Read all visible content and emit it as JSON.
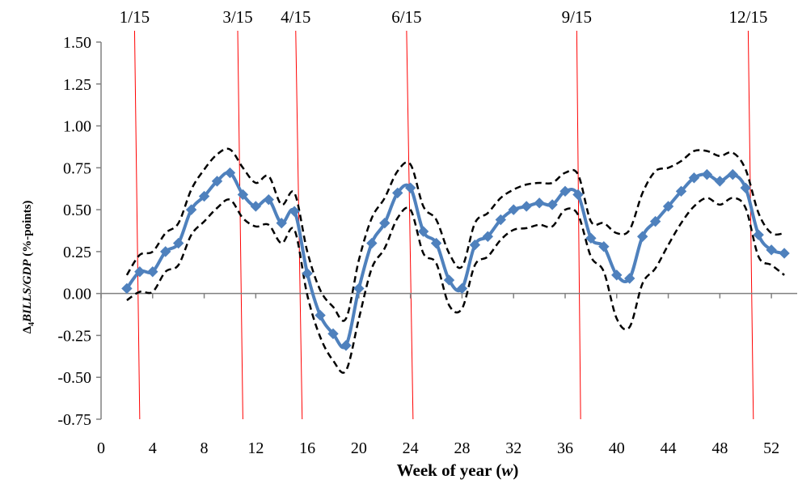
{
  "chart_data": {
    "type": "line",
    "title": "",
    "xlabel": {
      "prefix": "Week of year (",
      "var": "w",
      "suffix": ")"
    },
    "ylabel": {
      "delta": "Δ",
      "sub": "4",
      "var": "BILLS/GDP",
      "suffix": " (%-points)"
    },
    "xlim": [
      0,
      54
    ],
    "ylim": [
      -0.75,
      1.5
    ],
    "xticks": [
      0,
      4,
      8,
      12,
      16,
      20,
      24,
      28,
      32,
      36,
      40,
      44,
      48,
      52
    ],
    "yticks": [
      "-0.75",
      "-0.50",
      "-0.25",
      "0.00",
      "0.25",
      "0.50",
      "0.75",
      "1.00",
      "1.25",
      "1.50"
    ],
    "date_markers": [
      {
        "label": "1/15",
        "x_top": 2.6,
        "x_bottom": 3.0
      },
      {
        "label": "3/15",
        "x_top": 10.6,
        "x_bottom": 11.0
      },
      {
        "label": "4/15",
        "x_top": 15.1,
        "x_bottom": 15.6
      },
      {
        "label": "6/15",
        "x_top": 23.7,
        "x_bottom": 24.2
      },
      {
        "label": "9/15",
        "x_top": 36.9,
        "x_bottom": 37.2
      },
      {
        "label": "12/15",
        "x_top": 50.2,
        "x_bottom": 50.6
      }
    ],
    "x": [
      2,
      3,
      4,
      5,
      6,
      7,
      8,
      9,
      10,
      11,
      12,
      13,
      14,
      15,
      16,
      17,
      18,
      19,
      20,
      21,
      22,
      23,
      24,
      25,
      26,
      27,
      28,
      29,
      30,
      31,
      32,
      33,
      34,
      35,
      36,
      37,
      38,
      39,
      40,
      41,
      42,
      43,
      44,
      45,
      46,
      47,
      48,
      49,
      50,
      51,
      52,
      53
    ],
    "series": [
      {
        "name": "",
        "style": "solid",
        "color": "#4F81BD",
        "markers": true,
        "values": [
          0.03,
          0.13,
          0.13,
          0.25,
          0.3,
          0.5,
          0.58,
          0.67,
          0.72,
          0.59,
          0.52,
          0.56,
          0.42,
          0.49,
          0.12,
          -0.13,
          -0.24,
          -0.31,
          0.03,
          0.3,
          0.42,
          0.6,
          0.63,
          0.37,
          0.3,
          0.08,
          0.03,
          0.29,
          0.34,
          0.44,
          0.5,
          0.52,
          0.54,
          0.53,
          0.61,
          0.59,
          0.33,
          0.28,
          0.11,
          0.09,
          0.34,
          0.43,
          0.52,
          0.61,
          0.69,
          0.71,
          0.67,
          0.71,
          0.63,
          0.35,
          0.26,
          0.24
        ]
      },
      {
        "name": "",
        "style": "dashed",
        "color": "#000000",
        "markers": false,
        "values": [
          0.11,
          0.23,
          0.25,
          0.36,
          0.42,
          0.62,
          0.74,
          0.83,
          0.86,
          0.75,
          0.66,
          0.7,
          0.53,
          0.6,
          0.25,
          0.02,
          -0.08,
          -0.15,
          0.2,
          0.45,
          0.57,
          0.73,
          0.77,
          0.52,
          0.44,
          0.24,
          0.16,
          0.42,
          0.48,
          0.57,
          0.62,
          0.65,
          0.66,
          0.66,
          0.72,
          0.71,
          0.43,
          0.42,
          0.36,
          0.38,
          0.6,
          0.73,
          0.75,
          0.79,
          0.85,
          0.85,
          0.82,
          0.84,
          0.74,
          0.48,
          0.36,
          0.36
        ]
      },
      {
        "name": "",
        "style": "dashed",
        "color": "#000000",
        "markers": false,
        "values": [
          -0.04,
          0.01,
          0.01,
          0.13,
          0.17,
          0.35,
          0.43,
          0.51,
          0.56,
          0.45,
          0.4,
          0.41,
          0.3,
          0.38,
          -0.01,
          -0.26,
          -0.4,
          -0.46,
          -0.15,
          0.15,
          0.27,
          0.45,
          0.5,
          0.24,
          0.18,
          -0.07,
          -0.09,
          0.17,
          0.22,
          0.32,
          0.38,
          0.39,
          0.41,
          0.4,
          0.5,
          0.47,
          0.22,
          0.13,
          -0.15,
          -0.2,
          0.06,
          0.15,
          0.29,
          0.42,
          0.52,
          0.57,
          0.53,
          0.57,
          0.51,
          0.22,
          0.17,
          0.11
        ]
      }
    ],
    "colors": {
      "axis": "#808080",
      "marker_line": "#FF0000"
    }
  }
}
